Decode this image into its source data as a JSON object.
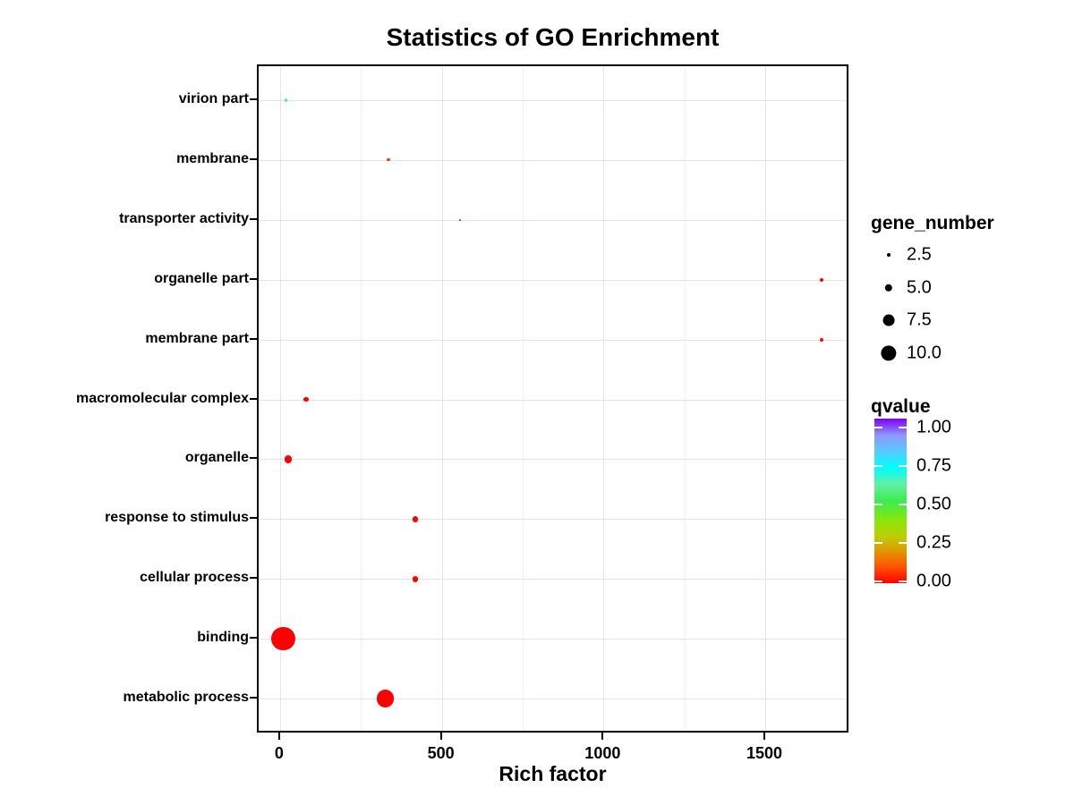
{
  "title": "Statistics of GO Enrichment",
  "chart_data": {
    "type": "scatter",
    "title": "Statistics of GO Enrichment",
    "xlabel": "Rich factor",
    "ylabel": "",
    "xlim": [
      -69,
      1760
    ],
    "x_major_ticks": [
      0,
      500,
      1000,
      1500
    ],
    "x_minor_gridlines": [
      250,
      750,
      1250,
      1750
    ],
    "x_tick_labels": [
      "0",
      "500",
      "1000",
      "1500"
    ],
    "grid": true,
    "categories_top_to_bottom": [
      "virion part",
      "membrane",
      "transporter activity",
      "organelle part",
      "membrane part",
      "macromolecular complex",
      "organelle",
      "response to stimulus",
      "cellular process",
      "binding",
      "metabolic process"
    ],
    "points": [
      {
        "category": "virion part",
        "rich_factor": 19,
        "gene_number": 2,
        "qvalue": 0.57
      },
      {
        "category": "membrane",
        "rich_factor": 335,
        "gene_number": 2,
        "qvalue": 0.07
      },
      {
        "category": "transporter activity",
        "rich_factor": 556,
        "gene_number": 1.5,
        "qvalue": 0.02
      },
      {
        "category": "organelle part",
        "rich_factor": 1674,
        "gene_number": 2.5,
        "qvalue": 0.01
      },
      {
        "category": "membrane part",
        "rich_factor": 1674,
        "gene_number": 2.5,
        "qvalue": 0.01
      },
      {
        "category": "macromolecular complex",
        "rich_factor": 80,
        "gene_number": 3.5,
        "qvalue": 0.0
      },
      {
        "category": "organelle",
        "rich_factor": 25,
        "gene_number": 5,
        "qvalue": 0.0
      },
      {
        "category": "response to stimulus",
        "rich_factor": 418,
        "gene_number": 4,
        "qvalue": 0.0
      },
      {
        "category": "cellular process",
        "rich_factor": 418,
        "gene_number": 4,
        "qvalue": 0.0
      },
      {
        "category": "binding",
        "rich_factor": 10,
        "gene_number": 15,
        "qvalue": 0.0
      },
      {
        "category": "metabolic process",
        "rich_factor": 326,
        "gene_number": 11,
        "qvalue": 0.0
      }
    ]
  },
  "legends": {
    "size": {
      "title": "gene_number",
      "items": [
        {
          "label": "2.5",
          "value": 2.5
        },
        {
          "label": "5.0",
          "value": 5.0
        },
        {
          "label": "7.5",
          "value": 7.5
        },
        {
          "label": "10.0",
          "value": 10.0
        }
      ]
    },
    "color": {
      "title": "qvalue",
      "ticks": [
        {
          "label": "1.00",
          "value": 1.0
        },
        {
          "label": "0.75",
          "value": 0.75
        },
        {
          "label": "0.50",
          "value": 0.5
        },
        {
          "label": "0.25",
          "value": 0.25
        },
        {
          "label": "0.00",
          "value": 0.0
        }
      ],
      "gradient_stops": [
        {
          "q": 0.0,
          "color": "#ff0000"
        },
        {
          "q": 0.1,
          "color": "#ff5400"
        },
        {
          "q": 0.2,
          "color": "#e09a00"
        },
        {
          "q": 0.28,
          "color": "#bfcc00"
        },
        {
          "q": 0.38,
          "color": "#8ce60a"
        },
        {
          "q": 0.5,
          "color": "#3aee4e"
        },
        {
          "q": 0.6,
          "color": "#63efa3"
        },
        {
          "q": 0.7,
          "color": "#00ffff"
        },
        {
          "q": 0.8,
          "color": "#58cbff"
        },
        {
          "q": 0.9,
          "color": "#8e97fb"
        },
        {
          "q": 1.0,
          "color": "#7c00fa"
        }
      ]
    }
  },
  "colors": {
    "grid_major": "#e4e4e4",
    "grid_minor": "#f2f2f2",
    "panel_border": "#000000",
    "text": "#000000",
    "background": "#ffffff"
  }
}
